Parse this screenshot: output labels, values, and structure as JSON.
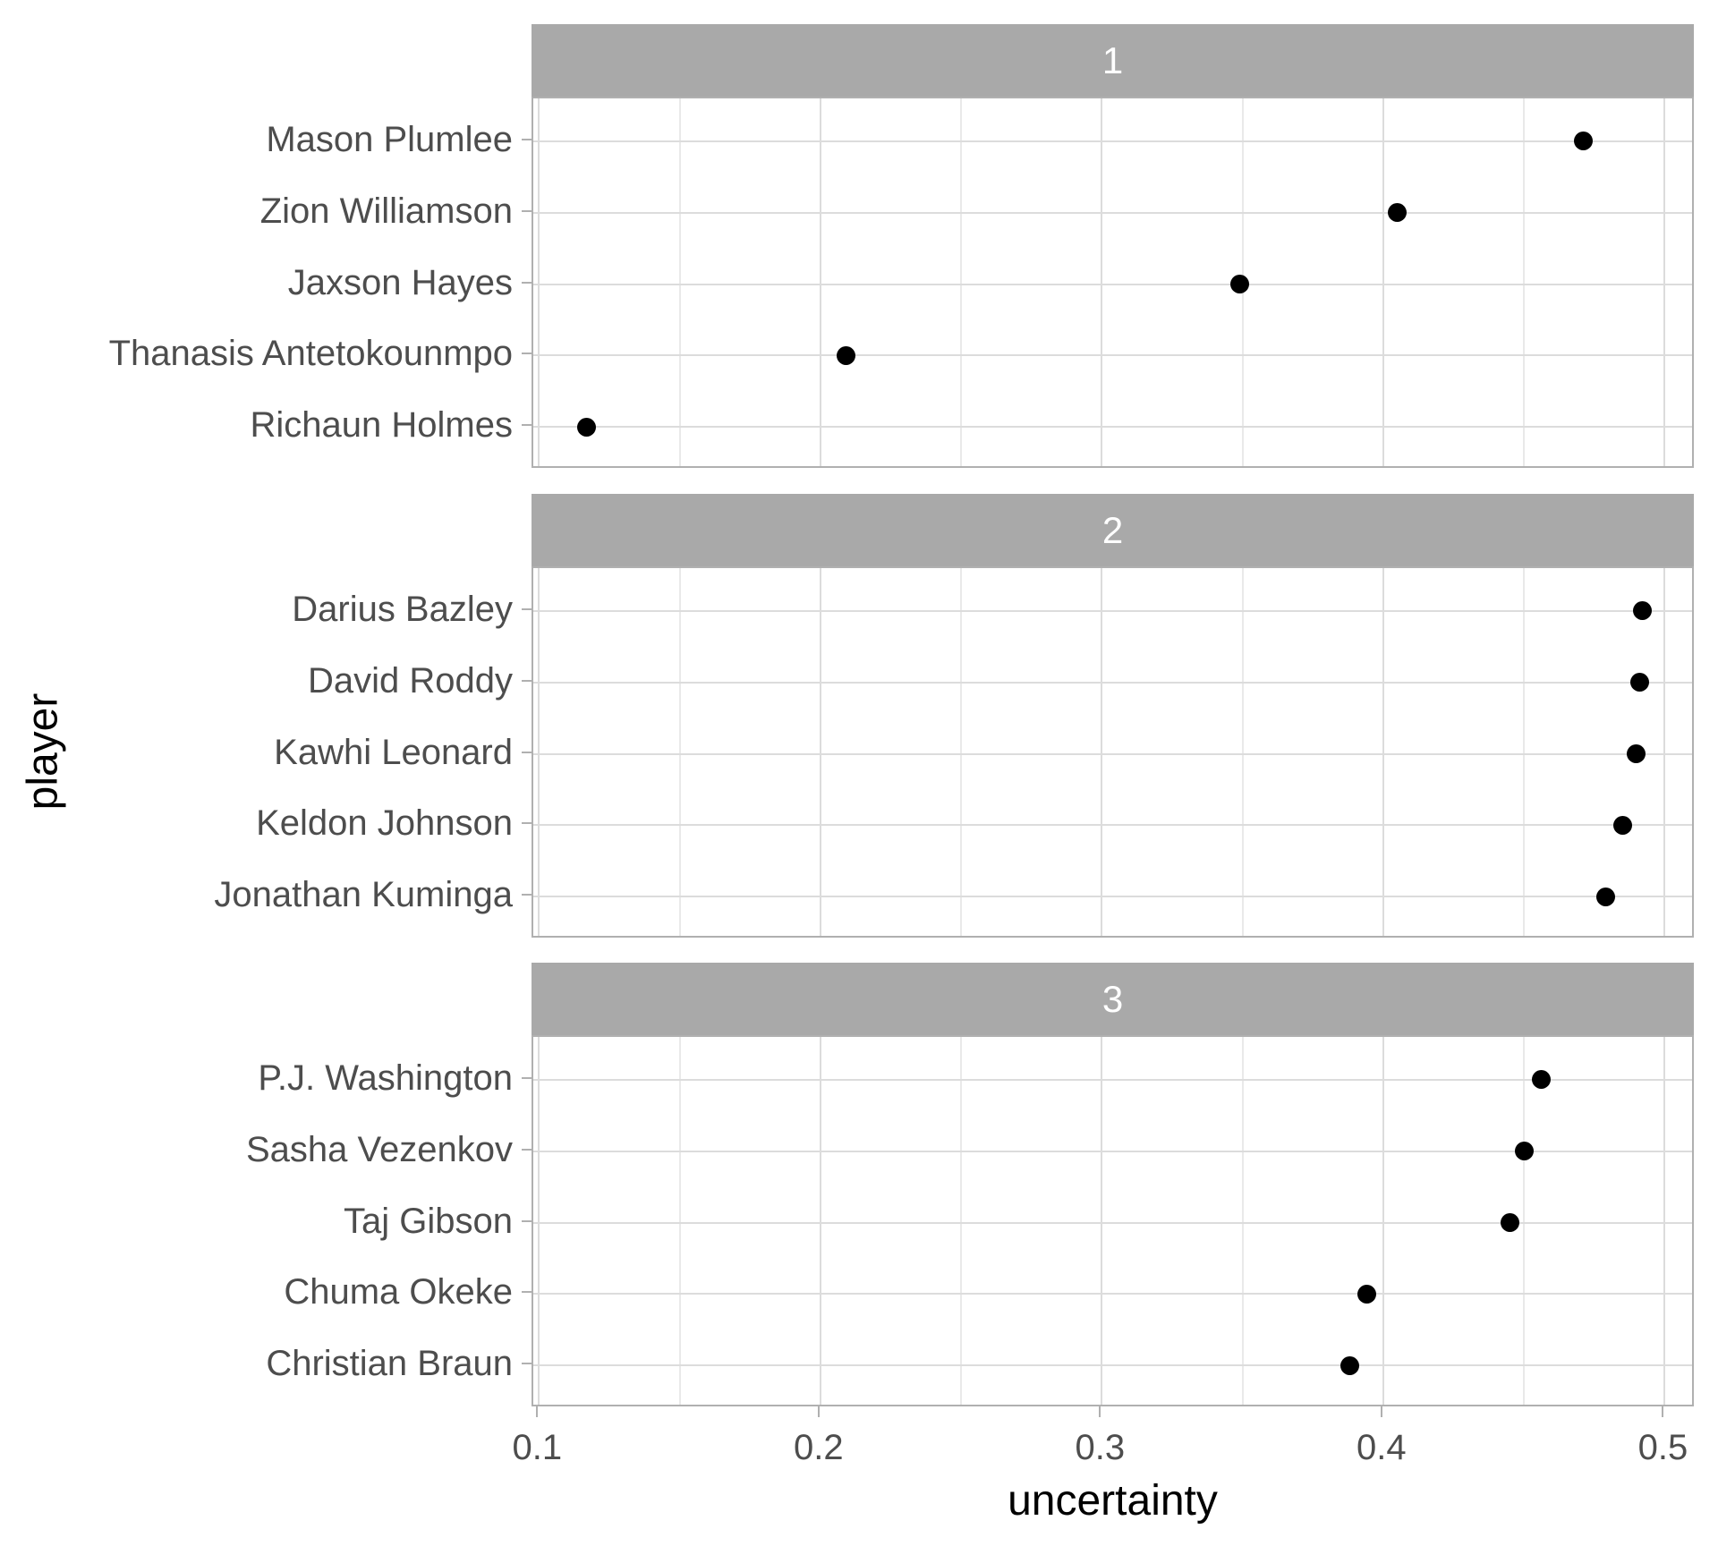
{
  "chart_data": {
    "type": "scatter",
    "subtype": "faceted-dot-plot",
    "title": "",
    "xlabel": "uncertainty",
    "ylabel": "player",
    "xlim": [
      0.098,
      0.511
    ],
    "x_ticks": [
      0.1,
      0.2,
      0.3,
      0.4,
      0.5
    ],
    "x_tick_labels": [
      "0.1",
      "0.2",
      "0.3",
      "0.4",
      "0.5"
    ],
    "x_minor_ticks": [
      0.15,
      0.25,
      0.35,
      0.45
    ],
    "grid": true,
    "legend_position": "none",
    "facets": [
      {
        "label": "1",
        "rows": [
          {
            "player": "Mason Plumlee",
            "uncertainty": 0.471
          },
          {
            "player": "Zion Williamson",
            "uncertainty": 0.405
          },
          {
            "player": "Jaxson Hayes",
            "uncertainty": 0.349
          },
          {
            "player": "Thanasis Antetokounmpo",
            "uncertainty": 0.209
          },
          {
            "player": "Richaun Holmes",
            "uncertainty": 0.117
          }
        ]
      },
      {
        "label": "2",
        "rows": [
          {
            "player": "Darius Bazley",
            "uncertainty": 0.492
          },
          {
            "player": "David Roddy",
            "uncertainty": 0.491
          },
          {
            "player": "Kawhi Leonard",
            "uncertainty": 0.49
          },
          {
            "player": "Keldon Johnson",
            "uncertainty": 0.485
          },
          {
            "player": "Jonathan Kuminga",
            "uncertainty": 0.479
          }
        ]
      },
      {
        "label": "3",
        "rows": [
          {
            "player": "P.J. Washington",
            "uncertainty": 0.456
          },
          {
            "player": "Sasha Vezenkov",
            "uncertainty": 0.45
          },
          {
            "player": "Taj Gibson",
            "uncertainty": 0.445
          },
          {
            "player": "Chuma Okeke",
            "uncertainty": 0.394
          },
          {
            "player": "Christian Braun",
            "uncertainty": 0.388
          }
        ]
      }
    ],
    "colors": {
      "point": "#000000",
      "strip_background": "#a9a9a9",
      "strip_text": "#ffffff",
      "panel_border": "#b0b0b0",
      "grid_major": "#dcdcdc",
      "grid_minor": "#e9e9e9",
      "axis_text": "#4d4d4d",
      "axis_title": "#000000"
    }
  }
}
